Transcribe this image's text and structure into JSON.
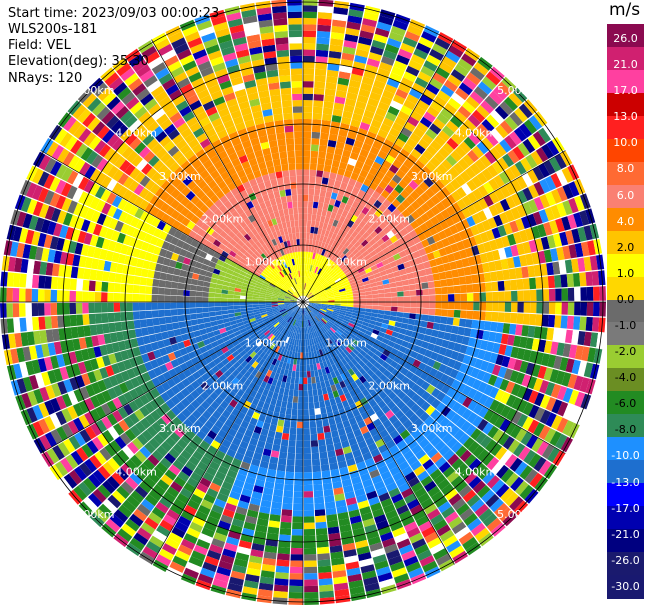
{
  "header": {
    "start_time": "Start time: 2023/09/03 00:00:23",
    "instrument": "WLS200s-181",
    "field": "Field: VEL",
    "elevation": "Elevation(deg): 35.30",
    "nrays": "NRays: 120"
  },
  "colorbar": {
    "unit": "m/s",
    "colors": [
      "#8b0a50",
      "#d02070",
      "#ff40a0",
      "#cc0000",
      "#ff2020",
      "#ff4500",
      "#ff6a33",
      "#fa8072",
      "#ff8c00",
      "#ffc400",
      "#ffff00",
      "#ffd700",
      "#6b6b6b",
      "#7a7a7a",
      "#9acd32",
      "#6b8e23",
      "#228b22",
      "#2e8b57",
      "#1e90ff",
      "#1e6fcf",
      "#0000ff",
      "#0000b0",
      "#000080",
      "#1a1a6e",
      "#191970"
    ],
    "labels": [
      "26.0",
      "21.0",
      "17.0",
      "13.0",
      "10.0",
      "8.0",
      "6.0",
      "4.0",
      "2.0",
      "1.0",
      "0.0",
      "-1.0",
      "-2.0",
      "-4.0",
      "-6.0",
      "-8.0",
      "-10.0",
      "-13.0",
      "-17.0",
      "-21.0",
      "-26.0",
      "-30.0"
    ]
  },
  "range_rings": {
    "labels": [
      "1.00km",
      "2.00km",
      "3.00km",
      "4.00km",
      "5.00km"
    ]
  }
}
